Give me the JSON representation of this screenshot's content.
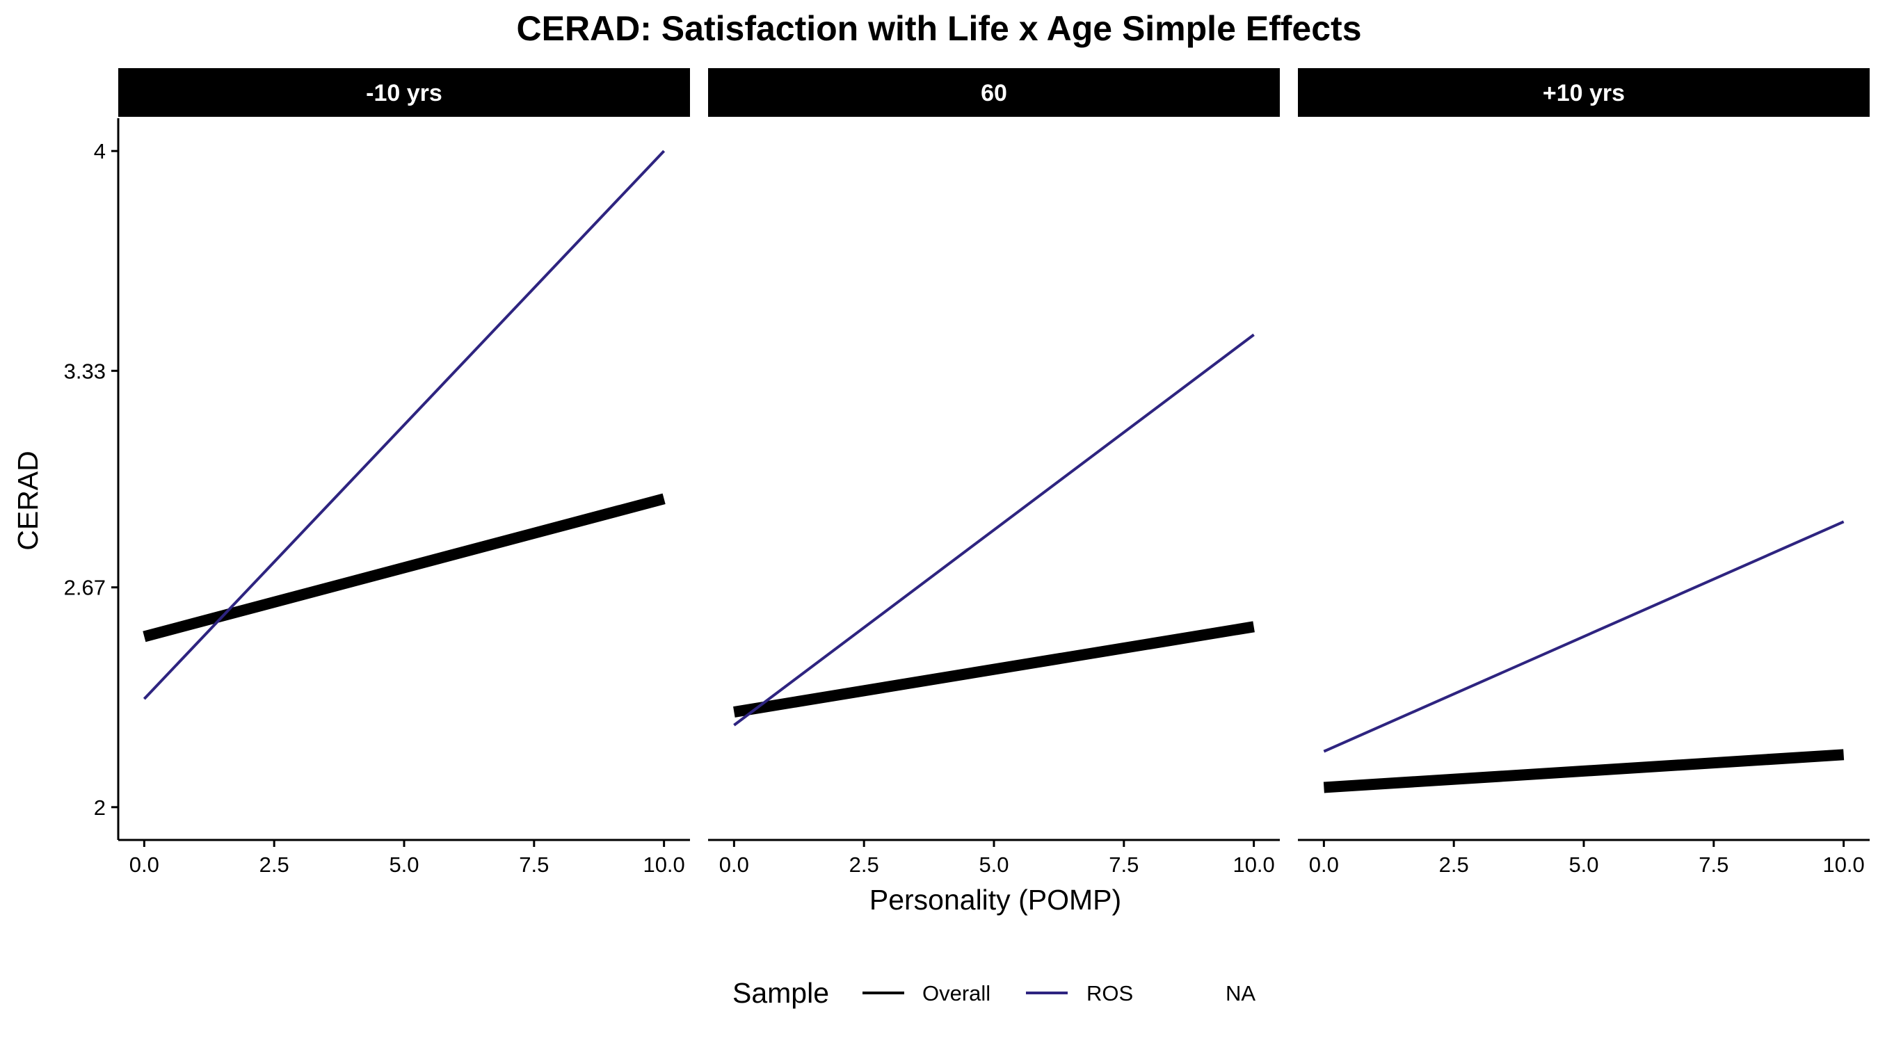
{
  "chart_data": {
    "type": "line",
    "title": "CERAD: Satisfaction with Life x Age Simple Effects",
    "xlabel": "Personality (POMP)",
    "ylabel": "CERAD",
    "xlim": [
      -0.5,
      10.5
    ],
    "ylim": [
      1.9,
      4.1
    ],
    "x_ticks": [
      0,
      2.5,
      5,
      7.5,
      10
    ],
    "x_tick_labels": [
      "0.0",
      "2.5",
      "5.0",
      "7.5",
      "10.0"
    ],
    "y_ticks": [
      2,
      2.67,
      3.33,
      4
    ],
    "y_tick_labels": [
      "2",
      "2.67",
      "3.33",
      "4"
    ],
    "grid": false,
    "legend": {
      "title": "Sample",
      "position": "bottom",
      "entries": [
        "Overall",
        "ROS",
        "NA"
      ]
    },
    "panels": [
      {
        "strip": "-10 yrs",
        "series": [
          {
            "name": "Overall",
            "x": [
              0,
              10
            ],
            "y": [
              2.52,
              2.94
            ]
          },
          {
            "name": "ROS",
            "x": [
              0,
              10
            ],
            "y": [
              2.33,
              4.0
            ]
          }
        ]
      },
      {
        "strip": "60",
        "series": [
          {
            "name": "Overall",
            "x": [
              0,
              10
            ],
            "y": [
              2.29,
              2.55
            ]
          },
          {
            "name": "ROS",
            "x": [
              0,
              10
            ],
            "y": [
              2.25,
              3.44
            ]
          }
        ]
      },
      {
        "strip": "+10 yrs",
        "series": [
          {
            "name": "Overall",
            "x": [
              0,
              10
            ],
            "y": [
              2.06,
              2.16
            ]
          },
          {
            "name": "ROS",
            "x": [
              0,
              10
            ],
            "y": [
              2.17,
              2.87
            ]
          }
        ]
      }
    ],
    "series_styles": {
      "Overall": {
        "color": "#000000",
        "width": 16
      },
      "ROS": {
        "color": "#2e2480",
        "width": 4
      }
    }
  }
}
